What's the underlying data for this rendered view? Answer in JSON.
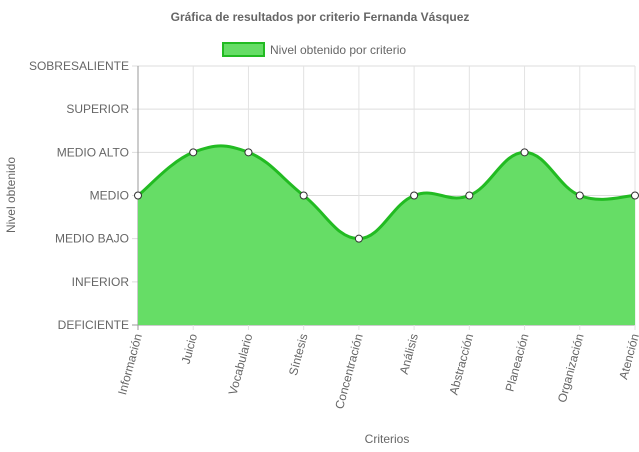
{
  "chart_data": {
    "type": "area",
    "title": "Gráfica de resultados por criterio Fernanda Vásquez",
    "xlabel": "Criterios",
    "ylabel": "Nivel obtenido",
    "legend_position": "top",
    "grid": true,
    "levels": [
      "DEFICIENTE",
      "INFERIOR",
      "MEDIO BAJO",
      "MEDIO",
      "MEDIO ALTO",
      "SUPERIOR",
      "SOBRESALIENTE"
    ],
    "categories": [
      "Información",
      "Juicio",
      "Vocabulario",
      "Síntesis",
      "Concentración",
      "Análisis",
      "Abstracción",
      "Planeación",
      "Organización",
      "Atención"
    ],
    "series": [
      {
        "name": "Nivel obtenido por criterio",
        "values": [
          "MEDIO",
          "MEDIO ALTO",
          "MEDIO ALTO",
          "MEDIO",
          "MEDIO BAJO",
          "MEDIO",
          "MEDIO",
          "MEDIO ALTO",
          "MEDIO",
          "MEDIO"
        ],
        "fill_color": "#66dd66",
        "line_color": "#22bb22"
      }
    ]
  }
}
